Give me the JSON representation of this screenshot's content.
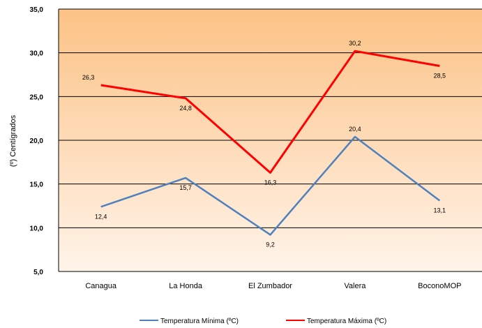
{
  "chart_data": {
    "type": "line",
    "title": "",
    "xlabel": "",
    "ylabel": "(º) Centígrados",
    "categories": [
      "Canagua",
      "La Honda",
      "El Zumbador",
      "Valera",
      "BoconoMOP"
    ],
    "ylim": [
      5,
      35
    ],
    "yticks": [
      "5,0",
      "10,0",
      "15,0",
      "20,0",
      "25,0",
      "30,0",
      "35,0"
    ],
    "grid": true,
    "legend_position": "bottom",
    "series": [
      {
        "name": "Temperatura Mínima (ºC)",
        "color": "#4f81bd",
        "values": [
          12.4,
          15.7,
          9.2,
          20.4,
          13.1
        ],
        "labels": [
          "12,4",
          "15,7",
          "9,2",
          "20,4",
          "13,1"
        ]
      },
      {
        "name": "Temperatura Máxima (ºC)",
        "color": "#ff0000",
        "values": [
          26.3,
          24.8,
          16.3,
          30.2,
          28.5
        ],
        "labels": [
          "26,3",
          "24,8",
          "16,3",
          "30,2",
          "28,5"
        ]
      }
    ]
  }
}
